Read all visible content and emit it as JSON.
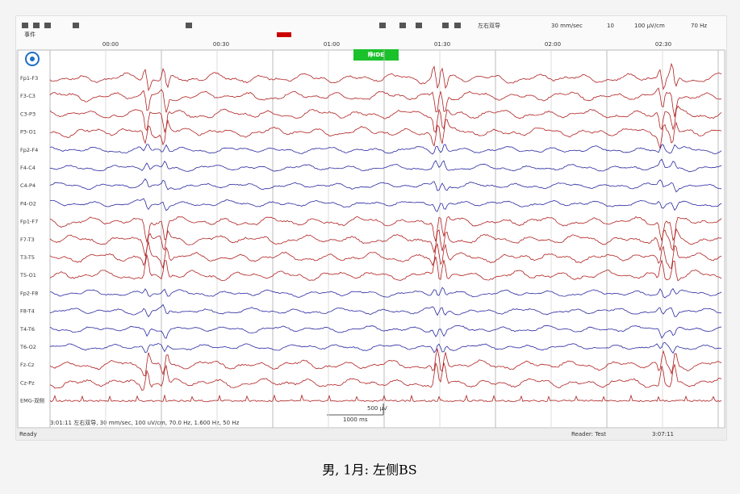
{
  "toolbar": {
    "montage": "左右双导",
    "speed": "30 mm/sec",
    "gain": "100 μV/cm",
    "filter": "70 Hz",
    "page": "10",
    "event_row": "事件"
  },
  "time_labels": [
    "00:00",
    "00:30",
    "01:00",
    "01:30",
    "02:00",
    "02:30"
  ],
  "event_marker": "睁IDE",
  "channels": [
    "Fp1-F3",
    "F3-C3",
    "C3-P3",
    "P3-O1",
    "Fp2-F4",
    "F4-C4",
    "C4-P4",
    "P4-O2",
    "Fp1-F7",
    "F7-T3",
    "T3-T5",
    "T5-O1",
    "Fp2-F8",
    "F8-T4",
    "T4-T6",
    "T6-O2",
    "Fz-Cz",
    "Cz-Pz",
    "EMG-双侧"
  ],
  "scale": {
    "time": "1000 ms",
    "amplitude": "500 μV"
  },
  "status": {
    "info": "3:01:11 左右双导, 30 mm/sec, 100 uV/cm, 70.0 Hz, 1.600 Hz, 50 Hz",
    "left": "Ready",
    "reader": "Reader: Test",
    "time": "3:07:11"
  },
  "caption": "男, 1月: 左侧BS"
}
